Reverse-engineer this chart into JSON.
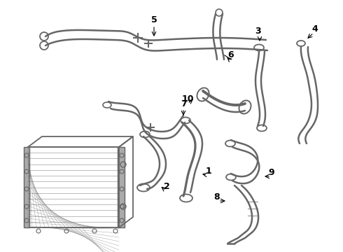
{
  "background_color": "#ffffff",
  "line_color": "#666666",
  "label_color": "#000000",
  "lw_main": 1.8,
  "lw_thin": 1.1,
  "fig_w": 4.9,
  "fig_h": 3.6,
  "dpi": 100
}
